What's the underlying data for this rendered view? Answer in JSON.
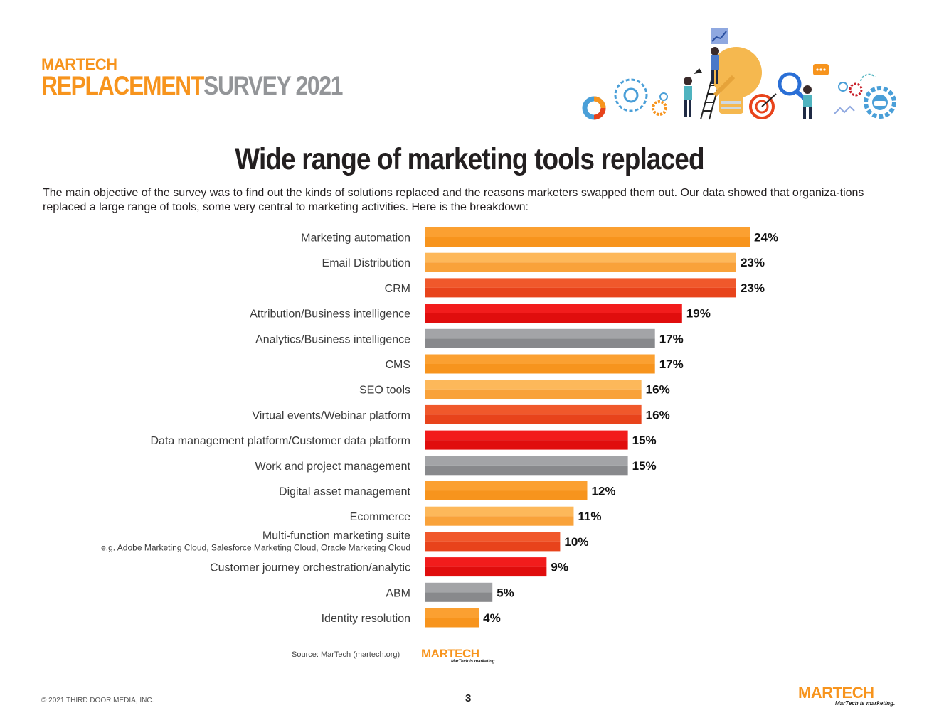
{
  "header": {
    "brand": "MARTECH",
    "subtitle_orange": "REPLACEMENT",
    "subtitle_gray": "SURVEY 2021"
  },
  "title": "Wide range of marketing tools replaced",
  "intro": "The main objective of the survey was to find out the kinds of solutions replaced and the reasons marketers swapped them out. Our data showed that organiza-tions replaced a large range of tools, some very central to marketing activities. Here is the breakdown:",
  "chart_data": {
    "type": "bar",
    "orientation": "horizontal",
    "title": "Wide range of marketing tools replaced",
    "xlabel": "",
    "ylabel": "",
    "xlim": [
      0,
      24
    ],
    "grid": false,
    "categories": [
      "Marketing automation",
      "Email Distribution",
      "CRM",
      "Attribution/Business intelligence",
      "Analytics/Business intelligence",
      "CMS",
      "SEO tools",
      "Virtual events/Webinar platform",
      "Data management platform/Customer data platform",
      "Work and project management",
      "Digital asset management",
      "Ecommerce",
      "Multi-function marketing suite",
      "Customer journey orchestration/analytic",
      "ABM",
      "Identity resolution"
    ],
    "sublabels": {
      "12": "e.g. Adobe Marketing Cloud, Salesforce Marketing Cloud, Oracle Marketing Cloud"
    },
    "values": [
      24,
      23,
      23,
      19,
      17,
      17,
      16,
      16,
      15,
      15,
      12,
      11,
      10,
      9,
      5,
      4
    ],
    "value_labels": [
      "24%",
      "23%",
      "23%",
      "19%",
      "17%",
      "17%",
      "16%",
      "16%",
      "15%",
      "15%",
      "12%",
      "11%",
      "10%",
      "9%",
      "5%",
      "4%"
    ],
    "colors": [
      [
        "#fba031",
        "#f7941d"
      ],
      [
        "#fdb85a",
        "#f9a23a"
      ],
      [
        "#f0582b",
        "#e8431b"
      ],
      [
        "#f21c1c",
        "#e00d0d"
      ],
      [
        "#a3a4a7",
        "#88898c"
      ],
      [
        "#fba031",
        "#f7941d"
      ],
      [
        "#fdb85a",
        "#f9a23a"
      ],
      [
        "#f0582b",
        "#e8431b"
      ],
      [
        "#f21c1c",
        "#e00d0d"
      ],
      [
        "#a3a4a7",
        "#88898c"
      ],
      [
        "#fba031",
        "#f7941d"
      ],
      [
        "#fdb85a",
        "#f9a23a"
      ],
      [
        "#f0582b",
        "#e8431b"
      ],
      [
        "#f21c1c",
        "#e00d0d"
      ],
      [
        "#a3a4a7",
        "#88898c"
      ],
      [
        "#fba031",
        "#f7941d"
      ]
    ]
  },
  "source": "Source: MarTech (martech.org)",
  "source_logo": "MARTECH",
  "tagline": "MarTech is marketing.",
  "footer": {
    "copyright": "© 2021 THIRD DOOR MEDIA, INC.",
    "page_number": "3",
    "logo": "MARTECH",
    "tagline": "MarTech is marketing."
  },
  "colors": {
    "orange": "#f7941d",
    "red_orange": "#e8431b",
    "red": "#e00d0d",
    "gray": "#88898c"
  }
}
